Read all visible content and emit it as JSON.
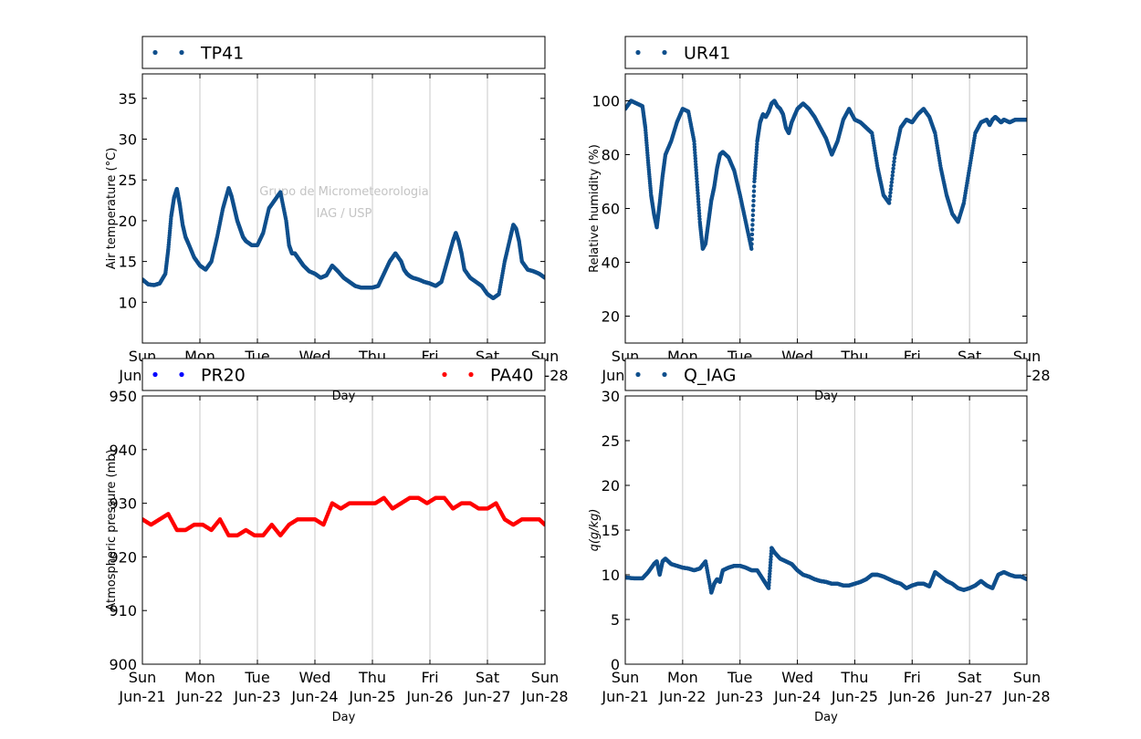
{
  "watermark": {
    "line1": "Grupo de Micrometeorologia",
    "line2": "IAG / USP"
  },
  "x_axis": {
    "label": "Day",
    "ticks": [
      [
        "Sun",
        "Jun-21"
      ],
      [
        "Mon",
        "Jun-22"
      ],
      [
        "Tue",
        "Jun-23"
      ],
      [
        "Wed",
        "Jun-24"
      ],
      [
        "Thu",
        "Jun-25"
      ],
      [
        "Fri",
        "Jun-26"
      ],
      [
        "Sat",
        "Jun-27"
      ],
      [
        "Sun",
        "Jun-28"
      ]
    ]
  },
  "colors": {
    "blue_series": "#0f4f8c",
    "pr20": "#0000ff",
    "pa40": "#ff0000",
    "grid": "#c8c8c8"
  },
  "chart_data": [
    {
      "type": "scatter",
      "ylabel": "Air temperature (°C)",
      "xlabel": "Day",
      "ylim": [
        5,
        38
      ],
      "yticks": [
        10,
        15,
        20,
        25,
        30,
        35
      ],
      "xlim": [
        0,
        7
      ],
      "grid": "x",
      "legend": "top, outside",
      "series": [
        {
          "name": "TP41",
          "color": "#0f4f8c",
          "x": [
            0,
            0.1,
            0.2,
            0.3,
            0.4,
            0.45,
            0.5,
            0.55,
            0.6,
            0.65,
            0.7,
            0.75,
            0.8,
            0.9,
            1.0,
            1.1,
            1.2,
            1.3,
            1.4,
            1.5,
            1.55,
            1.6,
            1.65,
            1.7,
            1.75,
            1.8,
            1.9,
            2.0,
            2.1,
            2.2,
            2.3,
            2.4,
            2.5,
            2.55,
            2.6,
            2.65,
            2.7,
            2.75,
            2.8,
            2.9,
            3.0,
            3.1,
            3.2,
            3.3,
            3.4,
            3.5,
            3.6,
            3.7,
            3.8,
            3.9,
            4.0,
            4.1,
            4.2,
            4.3,
            4.4,
            4.5,
            4.55,
            4.6,
            4.65,
            4.7,
            4.8,
            4.9,
            5.0,
            5.1,
            5.2,
            5.3,
            5.4,
            5.45,
            5.5,
            5.55,
            5.6,
            5.7,
            5.8,
            5.9,
            6.0,
            6.1,
            6.2,
            6.3,
            6.4,
            6.45,
            6.5,
            6.55,
            6.6,
            6.7,
            6.8,
            6.9,
            7.0
          ],
          "y": [
            12.8,
            12.2,
            12.1,
            12.3,
            13.5,
            16.5,
            20.5,
            22.8,
            23.9,
            22.0,
            19.5,
            18.0,
            17.2,
            15.5,
            14.5,
            14.0,
            15.0,
            18.0,
            21.5,
            24.0,
            23.0,
            21.5,
            20.0,
            19.0,
            18.0,
            17.5,
            17.0,
            17.0,
            18.5,
            21.5,
            22.5,
            23.5,
            20.0,
            17.0,
            16.0,
            16.0,
            15.5,
            15.0,
            14.5,
            13.8,
            13.5,
            13.0,
            13.3,
            14.5,
            13.8,
            13.0,
            12.5,
            12.0,
            11.8,
            11.8,
            11.8,
            12.0,
            13.5,
            15.0,
            16.0,
            15.0,
            14.0,
            13.5,
            13.2,
            13.0,
            12.8,
            12.5,
            12.3,
            12.0,
            12.5,
            15.0,
            17.5,
            18.5,
            17.5,
            16.0,
            14.0,
            13.0,
            12.5,
            12.0,
            11.0,
            10.5,
            11.0,
            15.0,
            18.0,
            19.5,
            19.0,
            17.5,
            15.0,
            14.0,
            13.8,
            13.5,
            13.0
          ]
        }
      ]
    },
    {
      "type": "scatter",
      "ylabel": "Relative humidity (%)",
      "xlabel": "Day",
      "ylim": [
        10,
        110
      ],
      "yticks": [
        20,
        40,
        60,
        80,
        100
      ],
      "xlim": [
        0,
        7
      ],
      "grid": "x",
      "legend": "top, outside",
      "series": [
        {
          "name": "UR41",
          "color": "#0f4f8c",
          "x": [
            0,
            0.1,
            0.2,
            0.3,
            0.35,
            0.4,
            0.45,
            0.5,
            0.55,
            0.6,
            0.65,
            0.7,
            0.8,
            0.9,
            1.0,
            1.1,
            1.2,
            1.25,
            1.3,
            1.35,
            1.4,
            1.45,
            1.5,
            1.55,
            1.6,
            1.65,
            1.7,
            1.8,
            1.9,
            2.0,
            2.1,
            2.2,
            2.25,
            2.3,
            2.35,
            2.4,
            2.45,
            2.5,
            2.55,
            2.6,
            2.65,
            2.7,
            2.75,
            2.8,
            2.85,
            2.9,
            3.0,
            3.1,
            3.2,
            3.3,
            3.4,
            3.5,
            3.6,
            3.7,
            3.8,
            3.9,
            4.0,
            4.1,
            4.2,
            4.3,
            4.4,
            4.5,
            4.6,
            4.7,
            4.8,
            4.9,
            5.0,
            5.1,
            5.2,
            5.3,
            5.4,
            5.5,
            5.6,
            5.7,
            5.8,
            5.9,
            6.0,
            6.1,
            6.2,
            6.3,
            6.35,
            6.4,
            6.45,
            6.5,
            6.55,
            6.6,
            6.7,
            6.8,
            6.9,
            7.0
          ],
          "y": [
            97,
            100,
            99,
            98,
            90,
            77,
            65,
            58,
            53,
            62,
            72,
            80,
            85,
            92,
            97,
            96,
            85,
            70,
            55,
            45,
            47,
            55,
            63,
            68,
            75,
            80,
            81,
            79,
            74,
            65,
            55,
            45,
            70,
            85,
            92,
            95,
            94,
            96,
            99,
            100,
            98,
            97,
            95,
            90,
            88,
            92,
            97,
            99,
            97,
            94,
            90,
            86,
            80,
            85,
            93,
            97,
            93,
            92,
            90,
            88,
            75,
            65,
            62,
            80,
            90,
            93,
            92,
            95,
            97,
            94,
            88,
            75,
            65,
            58,
            55,
            62,
            75,
            88,
            92,
            93,
            91,
            93,
            94,
            93,
            92,
            93,
            92,
            93,
            93,
            93
          ]
        }
      ]
    },
    {
      "type": "scatter",
      "ylabel": "Atmospheric pressure (mb)",
      "xlabel": "Day",
      "ylim": [
        900,
        950
      ],
      "yticks": [
        900,
        910,
        920,
        930,
        940,
        950
      ],
      "xlim": [
        0,
        7
      ],
      "grid": "x",
      "legend": "top, outside",
      "series": [
        {
          "name": "PR20",
          "color": "#0000ff",
          "x": [],
          "y": []
        },
        {
          "name": "PA40",
          "color": "#ff0000",
          "x": [
            0,
            0.15,
            0.3,
            0.45,
            0.6,
            0.75,
            0.9,
            1.05,
            1.2,
            1.35,
            1.5,
            1.65,
            1.8,
            1.95,
            2.1,
            2.25,
            2.4,
            2.55,
            2.7,
            2.85,
            3.0,
            3.15,
            3.3,
            3.45,
            3.6,
            3.75,
            3.9,
            4.05,
            4.2,
            4.35,
            4.5,
            4.65,
            4.8,
            4.95,
            5.1,
            5.25,
            5.4,
            5.55,
            5.7,
            5.85,
            6.0,
            6.15,
            6.3,
            6.45,
            6.6,
            6.75,
            6.9,
            7.0
          ],
          "y": [
            927,
            926,
            927,
            928,
            925,
            925,
            926,
            926,
            925,
            927,
            924,
            924,
            925,
            924,
            924,
            926,
            924,
            926,
            927,
            927,
            927,
            926,
            930,
            929,
            930,
            930,
            930,
            930,
            931,
            929,
            930,
            931,
            931,
            930,
            931,
            931,
            929,
            930,
            930,
            929,
            929,
            930,
            927,
            926,
            927,
            927,
            927,
            926
          ]
        }
      ]
    },
    {
      "type": "scatter",
      "ylabel": "q(g/kg)",
      "xlabel": "Day",
      "ylim": [
        0,
        30
      ],
      "yticks": [
        0,
        5,
        10,
        15,
        20,
        25,
        30
      ],
      "xlim": [
        0,
        7
      ],
      "grid": "x",
      "legend": "top, outside",
      "series": [
        {
          "name": "Q_IAG",
          "color": "#0f4f8c",
          "x": [
            0,
            0.15,
            0.3,
            0.4,
            0.5,
            0.55,
            0.6,
            0.65,
            0.7,
            0.8,
            0.9,
            1.0,
            1.1,
            1.2,
            1.3,
            1.4,
            1.5,
            1.55,
            1.6,
            1.65,
            1.7,
            1.8,
            1.9,
            2.0,
            2.1,
            2.2,
            2.3,
            2.4,
            2.45,
            2.5,
            2.55,
            2.6,
            2.7,
            2.8,
            2.9,
            3.0,
            3.1,
            3.2,
            3.3,
            3.4,
            3.5,
            3.6,
            3.7,
            3.8,
            3.9,
            4.0,
            4.1,
            4.2,
            4.3,
            4.4,
            4.5,
            4.6,
            4.7,
            4.8,
            4.9,
            5.0,
            5.1,
            5.2,
            5.3,
            5.4,
            5.5,
            5.6,
            5.7,
            5.8,
            5.9,
            6.0,
            6.1,
            6.2,
            6.3,
            6.4,
            6.5,
            6.6,
            6.7,
            6.8,
            6.9,
            7.0
          ],
          "y": [
            9.7,
            9.6,
            9.6,
            10.3,
            11.2,
            11.5,
            10.0,
            11.5,
            11.8,
            11.2,
            11.0,
            10.8,
            10.7,
            10.5,
            10.7,
            11.5,
            8.0,
            9.0,
            9.5,
            9.2,
            10.5,
            10.8,
            11.0,
            11.0,
            10.8,
            10.5,
            10.5,
            9.5,
            9.0,
            8.5,
            13.0,
            12.5,
            11.8,
            11.5,
            11.2,
            10.5,
            10.0,
            9.8,
            9.5,
            9.3,
            9.2,
            9.0,
            9.0,
            8.8,
            8.8,
            9.0,
            9.2,
            9.5,
            10.0,
            10.0,
            9.8,
            9.5,
            9.2,
            9.0,
            8.5,
            8.8,
            9.0,
            9.0,
            8.7,
            10.3,
            9.8,
            9.3,
            9.0,
            8.5,
            8.3,
            8.5,
            8.8,
            9.3,
            8.8,
            8.5,
            10.0,
            10.3,
            10.0,
            9.8,
            9.8,
            9.5
          ]
        }
      ]
    }
  ]
}
